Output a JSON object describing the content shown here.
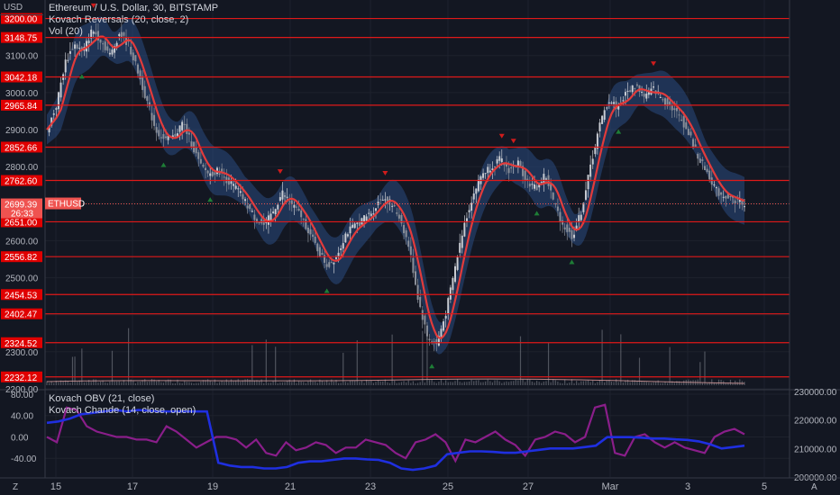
{
  "legend": {
    "title": "Ethereum / U.S. Dollar, 30, BITSTAMP",
    "indicator1": "Kovach Reversals (20, close, 2)",
    "indicator2": "Vol (20)",
    "lower1": "Kovach OBV (21, close)",
    "lower2": "Kovach Chande (14, close, open)"
  },
  "currency_label": "USD",
  "corner_left": "Z",
  "corner_right": "A",
  "colors": {
    "background": "#131722",
    "level_line": "#e01919",
    "price_label_bg": "#e00000",
    "current_label_bg": "#ef5350",
    "candle_up": "#c8cbd2",
    "candle_down": "#8a8f99",
    "band_fill": "#2a4a7f",
    "ma_line": "#e23b3b",
    "marker_up": "#1e7d36",
    "marker_down": "#d01c1c",
    "obv_line": "#1f2fe0",
    "chande_line": "#8a1e8a",
    "volume": "#787b86"
  },
  "chart_data": [
    {
      "type": "line",
      "subtype": "candlestick",
      "symbol": "ETHUSD",
      "ylim": [
        2200,
        3250
      ],
      "yticks": [
        2200,
        2300,
        2400,
        2500,
        2600,
        2700,
        2800,
        2900,
        3000,
        3100,
        3200
      ],
      "x_tick_labels": [
        "15",
        "17",
        "19",
        "21",
        "23",
        "25",
        "27",
        "Mar",
        "3",
        "5"
      ],
      "price_levels": [
        "3200.00",
        "3148.75",
        "3042.18",
        "2965.84",
        "2852.66",
        "2762.60",
        "2651.00",
        "2556.82",
        "2454.53",
        "2402.47",
        "2324.52",
        "2232.12"
      ],
      "current_price": "2699.39",
      "countdown": "26:33",
      "symbol_label": "ETHUSD",
      "price_path": [
        2900,
        2960,
        3080,
        3130,
        3110,
        3170,
        3140,
        3100,
        3160,
        3130,
        3060,
        2980,
        2900,
        2870,
        2880,
        2920,
        2860,
        2800,
        2780,
        2790,
        2760,
        2740,
        2700,
        2660,
        2640,
        2680,
        2730,
        2700,
        2670,
        2620,
        2570,
        2530,
        2560,
        2620,
        2640,
        2660,
        2680,
        2720,
        2700,
        2660,
        2580,
        2440,
        2340,
        2320,
        2400,
        2520,
        2640,
        2720,
        2780,
        2800,
        2820,
        2790,
        2810,
        2760,
        2740,
        2780,
        2700,
        2640,
        2610,
        2680,
        2800,
        2910,
        2980,
        2960,
        3000,
        3020,
        2990,
        3010,
        2980,
        2960,
        2930,
        2880,
        2820,
        2780,
        2730,
        2720,
        2710,
        2699.39
      ]
    },
    {
      "type": "line",
      "name": "Kovach OBV",
      "ylim": [
        200000,
        230000
      ],
      "yticks": [
        200000,
        210000,
        220000,
        230000
      ],
      "ytick_labels": [
        "200000.00",
        "210000.00",
        "220000.00",
        "230000.00"
      ],
      "values": [
        219000,
        219500,
        220500,
        222000,
        222500,
        223000,
        223500,
        223000,
        223500,
        223200,
        223000,
        223000,
        223000,
        223000,
        223000,
        205000,
        204000,
        203500,
        203500,
        203000,
        203000,
        203500,
        205000,
        205500,
        205500,
        206000,
        206500,
        206500,
        206200,
        206000,
        205000,
        203000,
        202500,
        203000,
        204000,
        208000,
        208500,
        209000,
        209000,
        208800,
        208500,
        208500,
        209000,
        209500,
        210000,
        210000,
        210000,
        210500,
        211000,
        214000,
        214000,
        214000,
        213800,
        213500,
        213500,
        213200,
        213000,
        212500,
        211500,
        210000,
        210500,
        211000
      ]
    },
    {
      "type": "line",
      "name": "Kovach Chande",
      "ylim": [
        -75,
        85
      ],
      "yticks": [
        -40,
        0,
        40,
        80
      ],
      "ytick_labels": [
        "-40.00",
        "0.00",
        "40.00",
        "80.00"
      ],
      "values": [
        0,
        -10,
        55,
        50,
        20,
        10,
        5,
        0,
        0,
        -5,
        -5,
        -10,
        20,
        10,
        -5,
        -20,
        -10,
        0,
        0,
        -5,
        -20,
        -5,
        -30,
        -35,
        -10,
        -25,
        -20,
        -10,
        -15,
        -30,
        -20,
        -20,
        -5,
        -10,
        -15,
        -30,
        -40,
        -10,
        -5,
        5,
        -10,
        -45,
        -5,
        -10,
        0,
        10,
        -5,
        -15,
        -35,
        -5,
        0,
        10,
        5,
        -10,
        0,
        55,
        60,
        -30,
        -35,
        0,
        5,
        -10,
        -20,
        -10,
        -20,
        -25,
        -30,
        0,
        10,
        15,
        5
      ]
    }
  ]
}
